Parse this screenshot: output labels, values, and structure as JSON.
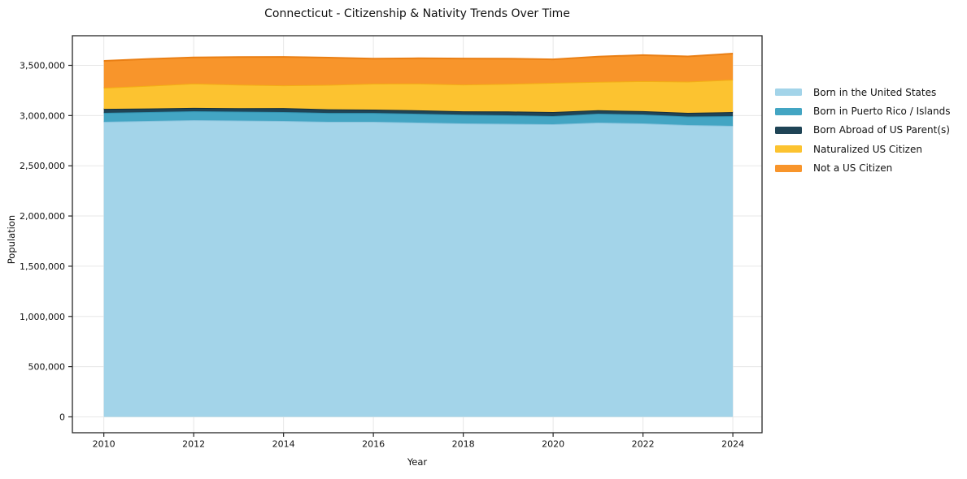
{
  "chart_data": {
    "type": "area",
    "stacked": true,
    "title": "Connecticut - Citizenship & Nativity Trends Over Time",
    "xlabel": "Year",
    "ylabel": "Population",
    "grid": true,
    "legend_position": "outside-right-top",
    "x": [
      2010,
      2011,
      2012,
      2013,
      2014,
      2015,
      2016,
      2017,
      2018,
      2019,
      2020,
      2021,
      2022,
      2023,
      2024
    ],
    "series": [
      {
        "name": "Born in the United States",
        "color": "#a3d4e9",
        "edge": "#8ac4de",
        "values": [
          2938000,
          2946000,
          2954000,
          2950000,
          2946000,
          2938000,
          2938000,
          2930000,
          2922000,
          2918000,
          2914000,
          2930000,
          2922000,
          2906000,
          2898000
        ]
      },
      {
        "name": "Born in Puerto Rico / Islands",
        "color": "#43a5c3",
        "edge": "#3192b1",
        "values": [
          89000,
          89000,
          89000,
          89000,
          89000,
          88000,
          88000,
          88000,
          87000,
          85000,
          81000,
          89000,
          89000,
          85000,
          97000
        ]
      },
      {
        "name": "Born Abroad of US Parent(s)",
        "color": "#1f4456",
        "edge": "#152f3c",
        "values": [
          40000,
          36000,
          33000,
          35000,
          40000,
          37000,
          33000,
          34000,
          33000,
          38000,
          40000,
          34000,
          33000,
          36000,
          40000
        ]
      },
      {
        "name": "Naturalized US Citizen",
        "color": "#fcc330",
        "edge": "#f3ae14",
        "values": [
          210000,
          226000,
          243000,
          234000,
          226000,
          243000,
          259000,
          267000,
          267000,
          275000,
          291000,
          283000,
          299000,
          311000,
          323000
        ]
      },
      {
        "name": "Not a US Citizen",
        "color": "#f8952b",
        "edge": "#ea7f14",
        "values": [
          267000,
          267000,
          259000,
          275000,
          283000,
          271000,
          248000,
          251000,
          259000,
          251000,
          234000,
          251000,
          259000,
          251000,
          259000
        ]
      }
    ],
    "xticks": [
      2010,
      2012,
      2014,
      2016,
      2018,
      2020,
      2022,
      2024
    ],
    "xtick_labels": [
      "2010",
      "2012",
      "2014",
      "2016",
      "2018",
      "2020",
      "2022",
      "2024"
    ],
    "yticks": [
      0,
      500000,
      1000000,
      1500000,
      2000000,
      2500000,
      3000000,
      3500000
    ],
    "ytick_labels": [
      "0",
      "500,000",
      "1,000,000",
      "1,500,000",
      "2,000,000",
      "2,500,000",
      "3,000,000",
      "3,500,000"
    ],
    "xlim": [
      2009.3,
      2024.65
    ],
    "ylim": [
      -158000,
      3795000
    ],
    "grid_color": "#e7e7e7",
    "spine_color": "#262626",
    "text_color": "#111111"
  }
}
